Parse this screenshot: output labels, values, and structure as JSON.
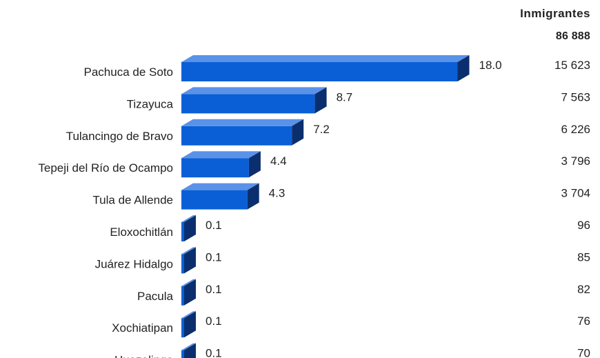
{
  "header": {
    "title": "Inmigrantes",
    "total": "86 888"
  },
  "colors": {
    "bar_front": "#0a5fd6",
    "bar_top": "#5a92e8",
    "bar_side": "#0b2f6e"
  },
  "chart_data": {
    "type": "bar",
    "orientation": "horizontal",
    "categories": [
      "Pachuca de Soto",
      "Tizayuca",
      "Tulancingo de Bravo",
      "Tepeji del Río de Ocampo",
      "Tula de Allende",
      "Eloxochitlán",
      "Juárez Hidalgo",
      "Pacula",
      "Xochiatipan",
      "Huazalingo"
    ],
    "values": [
      18.0,
      8.7,
      7.2,
      4.4,
      4.3,
      0.1,
      0.1,
      0.1,
      0.1,
      0.1
    ],
    "value_labels": [
      "18.0",
      "8.7",
      "7.2",
      "4.4",
      "4.3",
      "0.1",
      "0.1",
      "0.1",
      "0.1",
      "0.1"
    ],
    "immigrants": [
      "15 623",
      "7 563",
      "6 226",
      "3 796",
      "3 704",
      "96",
      "85",
      "82",
      "76",
      "70"
    ],
    "style": "3d"
  }
}
